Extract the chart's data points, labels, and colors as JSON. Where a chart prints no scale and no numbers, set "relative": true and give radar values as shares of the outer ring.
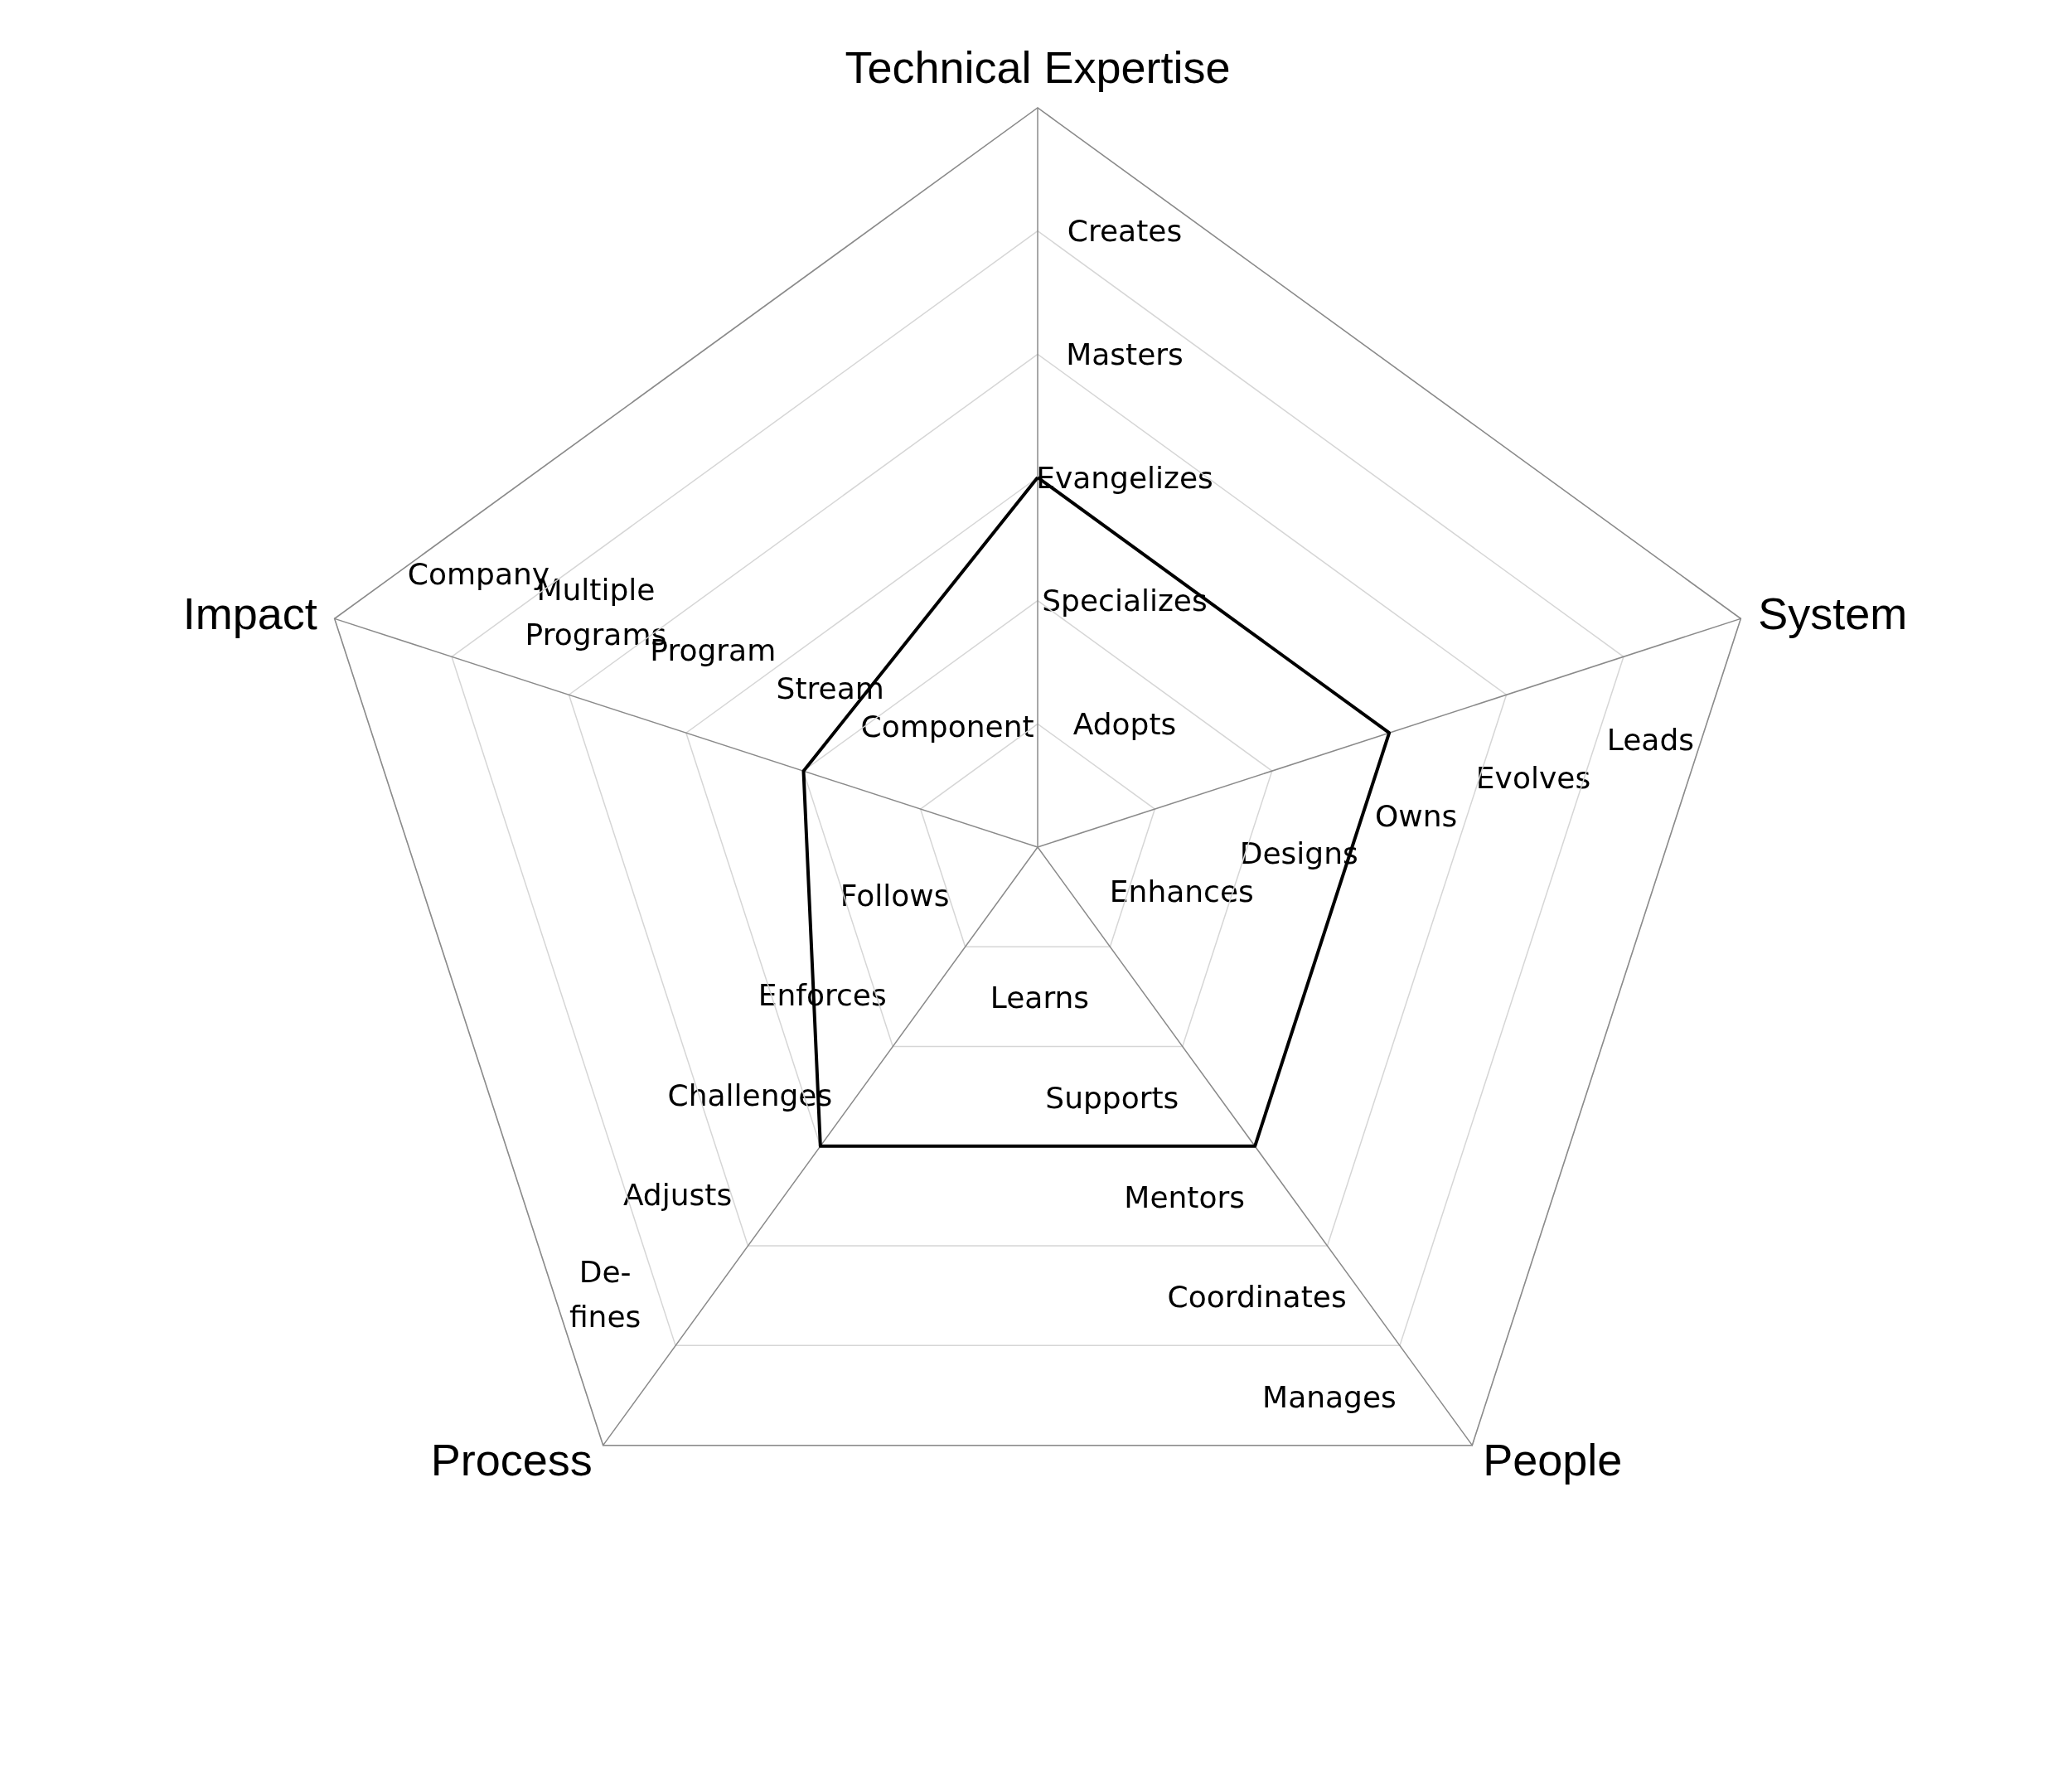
{
  "chart_data": {
    "type": "radar",
    "relative": true,
    "categories": [
      "Technical Expertise",
      "System",
      "People",
      "Process",
      "Impact"
    ],
    "series": [
      {
        "color": "#000000",
        "values": [
          0.5,
          0.5,
          0.5,
          0.5,
          0.333
        ]
      }
    ],
    "grid": true,
    "marker": "none",
    "line_style": "solid",
    "annotations": [
      "Adopts",
      "Specializes",
      "Evangelizes",
      "Masters",
      "Creates",
      "Enhances",
      "Designs",
      "Owns",
      "Evolves",
      "Leads",
      "Learns",
      "Supports",
      "Mentors",
      "Coordinates",
      "Manages",
      "Follows",
      "Enforces",
      "Challenges",
      "Adjusts",
      "De-\nfines",
      "Component",
      "Stream",
      "Program",
      "Multiple\nPrograms",
      "Company"
    ]
  }
}
